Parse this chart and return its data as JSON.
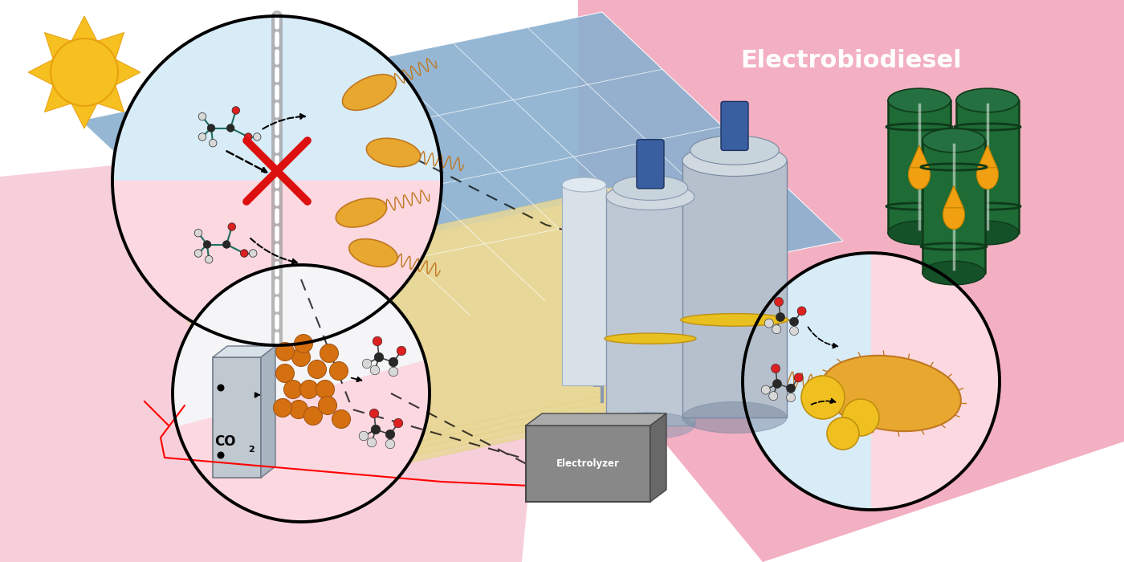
{
  "title": "Electrobiodiesel",
  "bg_color": "#ffffff",
  "pink_color": "#f2a8bc",
  "blue_panel_bg": "#c8dff0",
  "solar_blue": "#8ab0d0",
  "solar_grid": "#ffffff",
  "panel_yellow": "#e8d898",
  "panel_yellow2": "#ddd080",
  "bacteria_fill": "#e8a830",
  "bacteria_edge": "#c07820",
  "barrel_green": "#1e6b35",
  "barrel_dark": "#0f3a1a",
  "oil_yellow": "#f0a010",
  "reactor_gray": "#b0bcc8",
  "reactor_dark": "#7888a0",
  "electrolyzer_gray": "#8a8a8a",
  "orange_cat": "#d47010",
  "red_atom": "#dd2020",
  "black_atom": "#282828",
  "white_atom": "#e0e0e0",
  "teal_bond": "#207060",
  "gray_bond": "#505050",
  "sun_fill": "#f5c020",
  "sun_edge": "#e8a010",
  "gray_divider": "#9a9a9a",
  "circ1_blue": "#d8ecf8",
  "circ1_pink": "#fcd8e0",
  "circ2_fill": "#f5f5f8",
  "circ3_blue": "#d8ecf8",
  "circ3_pink": "#fcd8e0"
}
